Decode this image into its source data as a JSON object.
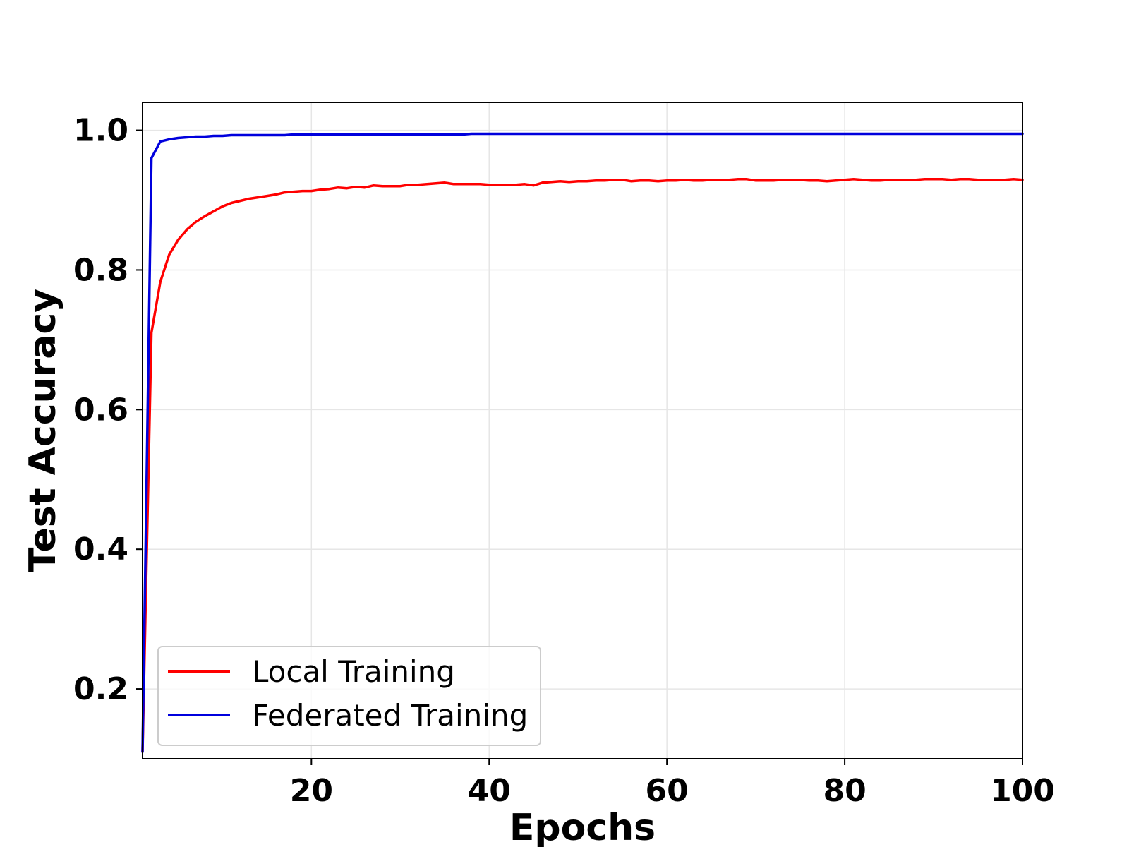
{
  "chart_data": {
    "type": "line",
    "title": "",
    "xlabel": "Epochs",
    "ylabel": "Test Accuracy",
    "xlim": [
      1,
      100
    ],
    "ylim": [
      0.1,
      1.04
    ],
    "xticks": [
      20,
      40,
      60,
      80,
      100
    ],
    "yticks": [
      0.2,
      0.4,
      0.6,
      0.8,
      1.0
    ],
    "xtick_labels": [
      "20",
      "40",
      "60",
      "80",
      "100"
    ],
    "ytick_labels": [
      "0.2",
      "0.4",
      "0.6",
      "0.8",
      "1.0"
    ],
    "grid": true,
    "legend_position": "lower-left",
    "x": [
      1,
      2,
      3,
      4,
      5,
      6,
      7,
      8,
      9,
      10,
      11,
      12,
      13,
      14,
      15,
      16,
      17,
      18,
      19,
      20,
      21,
      22,
      23,
      24,
      25,
      26,
      27,
      28,
      29,
      30,
      31,
      32,
      33,
      34,
      35,
      36,
      37,
      38,
      39,
      40,
      41,
      42,
      43,
      44,
      45,
      46,
      47,
      48,
      49,
      50,
      51,
      52,
      53,
      54,
      55,
      56,
      57,
      58,
      59,
      60,
      61,
      62,
      63,
      64,
      65,
      66,
      67,
      68,
      69,
      70,
      71,
      72,
      73,
      74,
      75,
      76,
      77,
      78,
      79,
      80,
      81,
      82,
      83,
      84,
      85,
      86,
      87,
      88,
      89,
      90,
      91,
      92,
      93,
      94,
      95,
      96,
      97,
      98,
      99,
      100
    ],
    "series": [
      {
        "name": "Local Training",
        "color": "#ff0000",
        "values": [
          0.11,
          0.71,
          0.783,
          0.822,
          0.843,
          0.858,
          0.869,
          0.877,
          0.884,
          0.891,
          0.896,
          0.899,
          0.902,
          0.904,
          0.906,
          0.908,
          0.911,
          0.912,
          0.913,
          0.913,
          0.915,
          0.916,
          0.918,
          0.917,
          0.919,
          0.918,
          0.921,
          0.92,
          0.92,
          0.92,
          0.922,
          0.922,
          0.923,
          0.924,
          0.925,
          0.923,
          0.923,
          0.923,
          0.923,
          0.922,
          0.922,
          0.922,
          0.922,
          0.923,
          0.921,
          0.925,
          0.926,
          0.927,
          0.926,
          0.927,
          0.927,
          0.928,
          0.928,
          0.929,
          0.929,
          0.927,
          0.928,
          0.928,
          0.927,
          0.928,
          0.928,
          0.929,
          0.928,
          0.928,
          0.929,
          0.929,
          0.929,
          0.93,
          0.93,
          0.928,
          0.928,
          0.928,
          0.929,
          0.929,
          0.929,
          0.928,
          0.928,
          0.927,
          0.928,
          0.929,
          0.93,
          0.929,
          0.928,
          0.928,
          0.929,
          0.929,
          0.929,
          0.929,
          0.93,
          0.93,
          0.93,
          0.929,
          0.93,
          0.93,
          0.929,
          0.929,
          0.929,
          0.929,
          0.93,
          0.929
        ]
      },
      {
        "name": "Federated Training",
        "color": "#0000dd",
        "values": [
          0.11,
          0.96,
          0.984,
          0.987,
          0.989,
          0.99,
          0.991,
          0.991,
          0.992,
          0.992,
          0.993,
          0.993,
          0.993,
          0.993,
          0.993,
          0.993,
          0.993,
          0.994,
          0.994,
          0.994,
          0.994,
          0.994,
          0.994,
          0.994,
          0.994,
          0.994,
          0.994,
          0.994,
          0.994,
          0.994,
          0.994,
          0.994,
          0.994,
          0.994,
          0.994,
          0.994,
          0.994,
          0.995,
          0.995,
          0.995,
          0.995,
          0.995,
          0.995,
          0.995,
          0.995,
          0.995,
          0.995,
          0.995,
          0.995,
          0.995,
          0.995,
          0.995,
          0.995,
          0.995,
          0.995,
          0.995,
          0.995,
          0.995,
          0.995,
          0.995,
          0.995,
          0.995,
          0.995,
          0.995,
          0.995,
          0.995,
          0.995,
          0.995,
          0.995,
          0.995,
          0.995,
          0.995,
          0.995,
          0.995,
          0.995,
          0.995,
          0.995,
          0.995,
          0.995,
          0.995,
          0.995,
          0.995,
          0.995,
          0.995,
          0.995,
          0.995,
          0.995,
          0.995,
          0.995,
          0.995,
          0.995,
          0.995,
          0.995,
          0.995,
          0.995,
          0.995,
          0.995,
          0.995,
          0.995,
          0.995
        ]
      }
    ]
  }
}
